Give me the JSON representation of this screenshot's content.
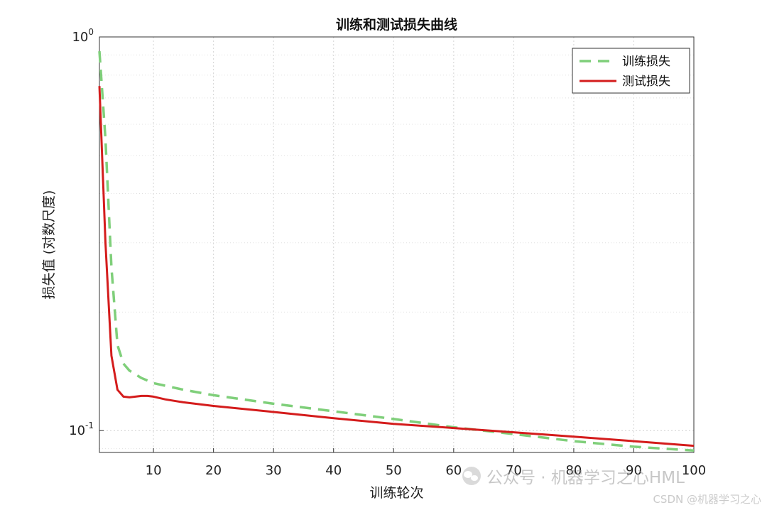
{
  "chart_data": {
    "type": "line",
    "title": "训练和测试损失曲线",
    "xlabel": "训练轮次",
    "ylabel": "损失值 (对数尺度)",
    "xlim": [
      1,
      100
    ],
    "ylim": [
      0.088,
      1.0
    ],
    "yscale": "log",
    "xticks": [
      10,
      20,
      30,
      40,
      50,
      60,
      70,
      80,
      90,
      100
    ],
    "xtick_labels": [
      "10",
      "20",
      "30",
      "40",
      "50",
      "60",
      "70",
      "80",
      "90",
      "100"
    ],
    "yticks": [
      {
        "value": 1.0,
        "base": "10",
        "exp": "0"
      },
      {
        "value": 0.1,
        "base": "10",
        "exp": "-1"
      }
    ],
    "grid": true,
    "legend_position": "top-right",
    "series": [
      {
        "name": "训练损失",
        "color": "#7fcf7a",
        "style": "dashed",
        "x": [
          1,
          2,
          3,
          4,
          5,
          6,
          8,
          10,
          15,
          20,
          30,
          40,
          50,
          60,
          70,
          80,
          90,
          100
        ],
        "y": [
          0.92,
          0.55,
          0.26,
          0.165,
          0.148,
          0.142,
          0.136,
          0.132,
          0.127,
          0.123,
          0.117,
          0.112,
          0.107,
          0.102,
          0.098,
          0.094,
          0.091,
          0.089
        ]
      },
      {
        "name": "测试损失",
        "color": "#d41c1c",
        "style": "solid",
        "x": [
          1,
          2,
          3,
          4,
          5,
          6,
          7,
          8,
          9,
          10,
          12,
          15,
          20,
          30,
          40,
          50,
          60,
          70,
          80,
          90,
          100
        ],
        "y": [
          0.75,
          0.3,
          0.155,
          0.127,
          0.122,
          0.1215,
          0.122,
          0.1225,
          0.1225,
          0.122,
          0.12,
          0.118,
          0.1155,
          0.1115,
          0.1075,
          0.104,
          0.1015,
          0.099,
          0.0965,
          0.094,
          0.0915
        ]
      }
    ]
  },
  "watermark": {
    "account": "公众号 · 机器学习之心HML",
    "credit": "CSDN @机器学习之心",
    "icon": "wechat-icon"
  }
}
